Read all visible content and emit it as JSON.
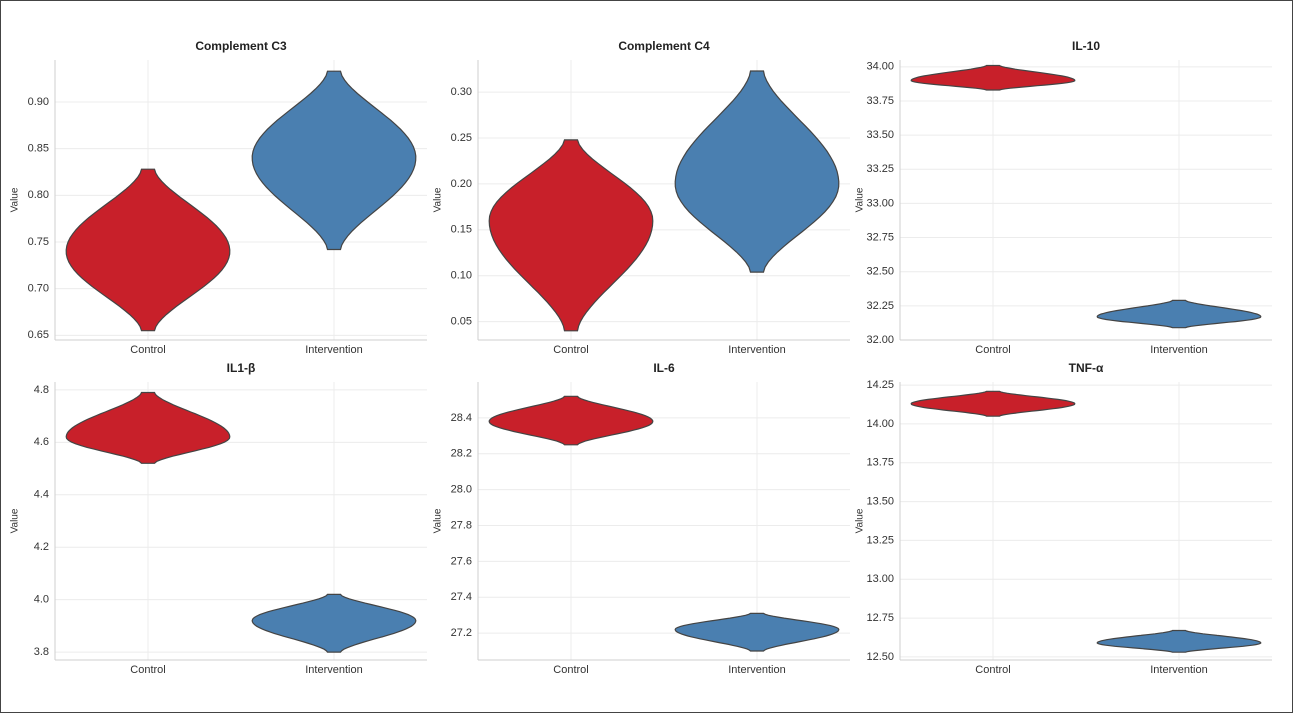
{
  "chart_data": [
    {
      "type": "violin",
      "title": "Complement C3",
      "ylabel": "Value",
      "categories": [
        "Control",
        "Intervention"
      ],
      "colors": [
        "#c8202a",
        "#4a7fb0"
      ],
      "min": [
        0.655,
        0.742
      ],
      "max": [
        0.828,
        0.933
      ],
      "mode": [
        0.74,
        0.84
      ],
      "ylim": [
        0.645,
        0.945
      ],
      "yticks": [
        0.65,
        {
          "value": 0.7,
          "label": "0.70"
        },
        0.75,
        {
          "value": 0.8,
          "label": "0.80"
        },
        0.85,
        {
          "value": 0.9,
          "label": "0.90"
        }
      ],
      "grid": true
    },
    {
      "type": "violin",
      "title": "Complement C4",
      "ylabel": "Value",
      "categories": [
        "Control",
        "Intervention"
      ],
      "colors": [
        "#c8202a",
        "#4a7fb0"
      ],
      "min": [
        0.04,
        0.104
      ],
      "max": [
        0.248,
        0.323
      ],
      "mode": [
        0.16,
        0.2
      ],
      "ylim": [
        0.03,
        0.335
      ],
      "yticks": [
        0.05,
        {
          "value": 0.1,
          "label": "0.10"
        },
        0.15,
        {
          "value": 0.2,
          "label": "0.20"
        },
        0.25,
        {
          "value": 0.3,
          "label": "0.30"
        }
      ],
      "grid": true
    },
    {
      "type": "violin",
      "title": "IL-10",
      "ylabel": "Value",
      "categories": [
        "Control",
        "Intervention"
      ],
      "colors": [
        "#c8202a",
        "#4a7fb0"
      ],
      "min": [
        33.83,
        32.09
      ],
      "max": [
        34.01,
        32.29
      ],
      "mode": [
        33.9,
        32.17
      ],
      "ylim": [
        32.0,
        34.05
      ],
      "yticks": [
        {
          "value": 32,
          "label": "32.00"
        },
        32.25,
        {
          "value": 32.5,
          "label": "32.50"
        },
        32.75,
        {
          "value": 33,
          "label": "33.00"
        },
        33.25,
        {
          "value": 33.5,
          "label": "33.50"
        },
        33.75,
        {
          "value": 34,
          "label": "34.00"
        }
      ],
      "grid": true
    },
    {
      "type": "violin",
      "title": "IL1-β",
      "ylabel": "Value",
      "categories": [
        "Control",
        "Intervention"
      ],
      "colors": [
        "#c8202a",
        "#4a7fb0"
      ],
      "min": [
        4.52,
        3.8
      ],
      "max": [
        4.79,
        4.02
      ],
      "mode": [
        4.62,
        3.92
      ],
      "ylim": [
        3.77,
        4.83
      ],
      "yticks": [
        3.8,
        {
          "value": 4,
          "label": "4.0"
        },
        4.2,
        4.4,
        4.6,
        4.8
      ],
      "grid": true
    },
    {
      "type": "violin",
      "title": "IL-6",
      "ylabel": "Value",
      "categories": [
        "Control",
        "Intervention"
      ],
      "colors": [
        "#c8202a",
        "#4a7fb0"
      ],
      "min": [
        28.25,
        27.1
      ],
      "max": [
        28.52,
        27.31
      ],
      "mode": [
        28.38,
        27.22
      ],
      "ylim": [
        27.05,
        28.6
      ],
      "yticks": [
        27.2,
        27.4,
        27.6,
        27.8,
        {
          "value": 28,
          "label": "28.0"
        },
        28.2,
        28.4
      ],
      "grid": true
    },
    {
      "type": "violin",
      "title": "TNF-α",
      "ylabel": "Value",
      "categories": [
        "Control",
        "Intervention"
      ],
      "colors": [
        "#c8202a",
        "#4a7fb0"
      ],
      "min": [
        14.05,
        12.53
      ],
      "max": [
        14.21,
        12.67
      ],
      "mode": [
        14.13,
        12.59
      ],
      "ylim": [
        12.48,
        14.27
      ],
      "yticks": [
        {
          "value": 12.5,
          "label": "12.50"
        },
        12.75,
        {
          "value": 13,
          "label": "13.00"
        },
        13.25,
        {
          "value": 13.5,
          "label": "13.50"
        },
        13.75,
        {
          "value": 14,
          "label": "14.00"
        },
        14.25
      ],
      "grid": true
    }
  ]
}
